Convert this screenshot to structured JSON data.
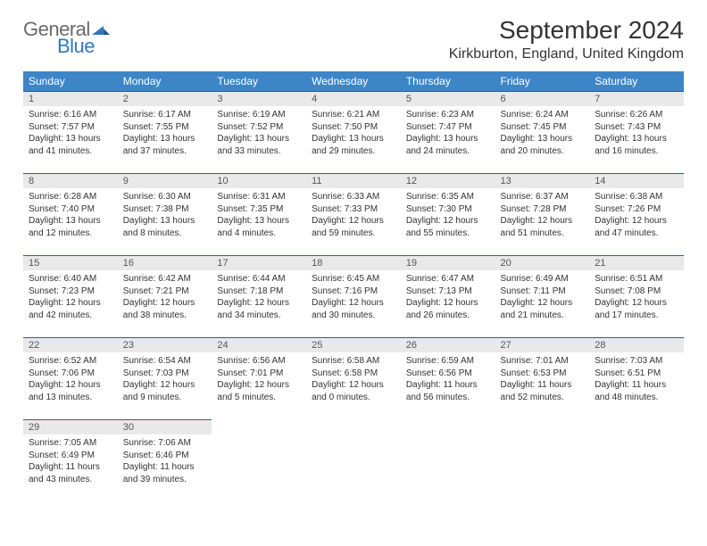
{
  "brand": {
    "word1": "General",
    "word2": "Blue",
    "mark_color": "#2f78bf",
    "word1_color": "#6a6a6a"
  },
  "title": "September 2024",
  "location": "Kirkburton, England, United Kingdom",
  "header_bg": "#3c86c8",
  "daynum_bg": "#e9e9e9",
  "row_border": "#2f5f8a",
  "day_names": [
    "Sunday",
    "Monday",
    "Tuesday",
    "Wednesday",
    "Thursday",
    "Friday",
    "Saturday"
  ],
  "weeks": [
    [
      {
        "n": "1",
        "sunrise": "Sunrise: 6:16 AM",
        "sunset": "Sunset: 7:57 PM",
        "daylight": "Daylight: 13 hours and 41 minutes."
      },
      {
        "n": "2",
        "sunrise": "Sunrise: 6:17 AM",
        "sunset": "Sunset: 7:55 PM",
        "daylight": "Daylight: 13 hours and 37 minutes."
      },
      {
        "n": "3",
        "sunrise": "Sunrise: 6:19 AM",
        "sunset": "Sunset: 7:52 PM",
        "daylight": "Daylight: 13 hours and 33 minutes."
      },
      {
        "n": "4",
        "sunrise": "Sunrise: 6:21 AM",
        "sunset": "Sunset: 7:50 PM",
        "daylight": "Daylight: 13 hours and 29 minutes."
      },
      {
        "n": "5",
        "sunrise": "Sunrise: 6:23 AM",
        "sunset": "Sunset: 7:47 PM",
        "daylight": "Daylight: 13 hours and 24 minutes."
      },
      {
        "n": "6",
        "sunrise": "Sunrise: 6:24 AM",
        "sunset": "Sunset: 7:45 PM",
        "daylight": "Daylight: 13 hours and 20 minutes."
      },
      {
        "n": "7",
        "sunrise": "Sunrise: 6:26 AM",
        "sunset": "Sunset: 7:43 PM",
        "daylight": "Daylight: 13 hours and 16 minutes."
      }
    ],
    [
      {
        "n": "8",
        "sunrise": "Sunrise: 6:28 AM",
        "sunset": "Sunset: 7:40 PM",
        "daylight": "Daylight: 13 hours and 12 minutes."
      },
      {
        "n": "9",
        "sunrise": "Sunrise: 6:30 AM",
        "sunset": "Sunset: 7:38 PM",
        "daylight": "Daylight: 13 hours and 8 minutes."
      },
      {
        "n": "10",
        "sunrise": "Sunrise: 6:31 AM",
        "sunset": "Sunset: 7:35 PM",
        "daylight": "Daylight: 13 hours and 4 minutes."
      },
      {
        "n": "11",
        "sunrise": "Sunrise: 6:33 AM",
        "sunset": "Sunset: 7:33 PM",
        "daylight": "Daylight: 12 hours and 59 minutes."
      },
      {
        "n": "12",
        "sunrise": "Sunrise: 6:35 AM",
        "sunset": "Sunset: 7:30 PM",
        "daylight": "Daylight: 12 hours and 55 minutes."
      },
      {
        "n": "13",
        "sunrise": "Sunrise: 6:37 AM",
        "sunset": "Sunset: 7:28 PM",
        "daylight": "Daylight: 12 hours and 51 minutes."
      },
      {
        "n": "14",
        "sunrise": "Sunrise: 6:38 AM",
        "sunset": "Sunset: 7:26 PM",
        "daylight": "Daylight: 12 hours and 47 minutes."
      }
    ],
    [
      {
        "n": "15",
        "sunrise": "Sunrise: 6:40 AM",
        "sunset": "Sunset: 7:23 PM",
        "daylight": "Daylight: 12 hours and 42 minutes."
      },
      {
        "n": "16",
        "sunrise": "Sunrise: 6:42 AM",
        "sunset": "Sunset: 7:21 PM",
        "daylight": "Daylight: 12 hours and 38 minutes."
      },
      {
        "n": "17",
        "sunrise": "Sunrise: 6:44 AM",
        "sunset": "Sunset: 7:18 PM",
        "daylight": "Daylight: 12 hours and 34 minutes."
      },
      {
        "n": "18",
        "sunrise": "Sunrise: 6:45 AM",
        "sunset": "Sunset: 7:16 PM",
        "daylight": "Daylight: 12 hours and 30 minutes."
      },
      {
        "n": "19",
        "sunrise": "Sunrise: 6:47 AM",
        "sunset": "Sunset: 7:13 PM",
        "daylight": "Daylight: 12 hours and 26 minutes."
      },
      {
        "n": "20",
        "sunrise": "Sunrise: 6:49 AM",
        "sunset": "Sunset: 7:11 PM",
        "daylight": "Daylight: 12 hours and 21 minutes."
      },
      {
        "n": "21",
        "sunrise": "Sunrise: 6:51 AM",
        "sunset": "Sunset: 7:08 PM",
        "daylight": "Daylight: 12 hours and 17 minutes."
      }
    ],
    [
      {
        "n": "22",
        "sunrise": "Sunrise: 6:52 AM",
        "sunset": "Sunset: 7:06 PM",
        "daylight": "Daylight: 12 hours and 13 minutes."
      },
      {
        "n": "23",
        "sunrise": "Sunrise: 6:54 AM",
        "sunset": "Sunset: 7:03 PM",
        "daylight": "Daylight: 12 hours and 9 minutes."
      },
      {
        "n": "24",
        "sunrise": "Sunrise: 6:56 AM",
        "sunset": "Sunset: 7:01 PM",
        "daylight": "Daylight: 12 hours and 5 minutes."
      },
      {
        "n": "25",
        "sunrise": "Sunrise: 6:58 AM",
        "sunset": "Sunset: 6:58 PM",
        "daylight": "Daylight: 12 hours and 0 minutes."
      },
      {
        "n": "26",
        "sunrise": "Sunrise: 6:59 AM",
        "sunset": "Sunset: 6:56 PM",
        "daylight": "Daylight: 11 hours and 56 minutes."
      },
      {
        "n": "27",
        "sunrise": "Sunrise: 7:01 AM",
        "sunset": "Sunset: 6:53 PM",
        "daylight": "Daylight: 11 hours and 52 minutes."
      },
      {
        "n": "28",
        "sunrise": "Sunrise: 7:03 AM",
        "sunset": "Sunset: 6:51 PM",
        "daylight": "Daylight: 11 hours and 48 minutes."
      }
    ],
    [
      {
        "n": "29",
        "sunrise": "Sunrise: 7:05 AM",
        "sunset": "Sunset: 6:49 PM",
        "daylight": "Daylight: 11 hours and 43 minutes."
      },
      {
        "n": "30",
        "sunrise": "Sunrise: 7:06 AM",
        "sunset": "Sunset: 6:46 PM",
        "daylight": "Daylight: 11 hours and 39 minutes."
      },
      {
        "empty": true
      },
      {
        "empty": true
      },
      {
        "empty": true
      },
      {
        "empty": true
      },
      {
        "empty": true
      }
    ]
  ]
}
